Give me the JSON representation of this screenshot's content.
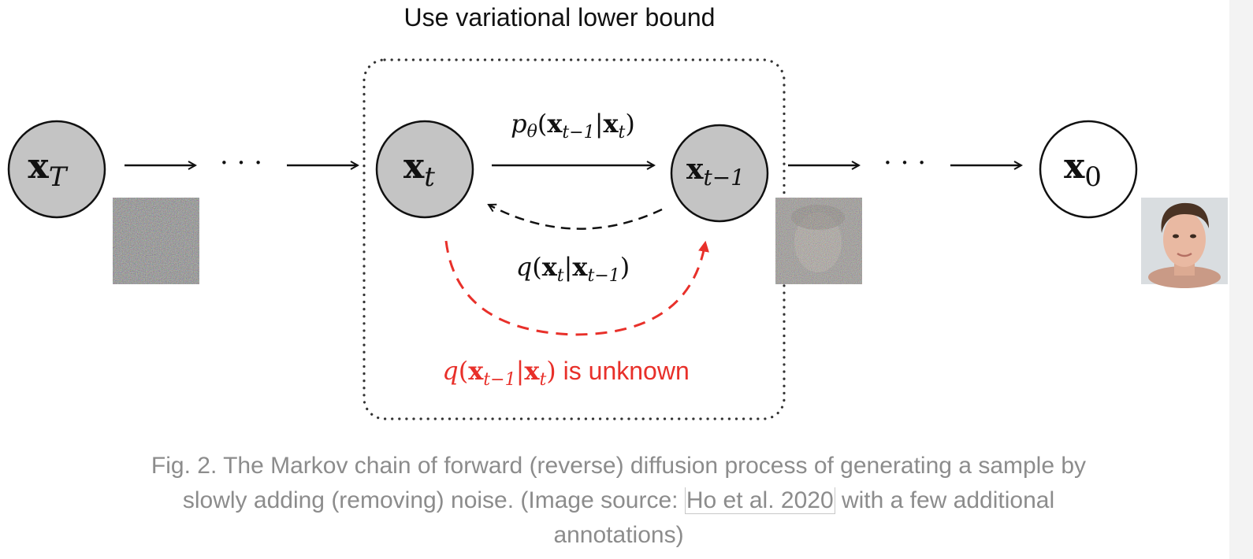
{
  "figure": {
    "top_label": "Use variational lower bound",
    "nodes": [
      {
        "id": "xT",
        "main": "x",
        "sub": "T",
        "filled": true
      },
      {
        "id": "xt",
        "main": "x",
        "sub": "t",
        "filled": true
      },
      {
        "id": "xt1",
        "main": "x",
        "sub": "t−1",
        "filled": true
      },
      {
        "id": "x0",
        "main": "x",
        "sub": "0",
        "filled": false
      }
    ],
    "ellipsis": "· · ·",
    "reverse_label": {
      "fn": "p",
      "param": "θ",
      "arg_main": "x",
      "arg_sub": "t−1",
      "cond_main": "x",
      "cond_sub": "t"
    },
    "forward_label": {
      "fn": "q",
      "arg_main": "x",
      "arg_sub": "t",
      "cond_main": "x",
      "cond_sub": "t−1"
    },
    "unknown_label": {
      "fn": "q",
      "arg_main": "x",
      "arg_sub": "t−1",
      "cond_main": "x",
      "cond_sub": "t",
      "suffix": " is unknown"
    },
    "colors": {
      "node_fill": "#c4c4c4",
      "stroke": "#111111",
      "annotation": "#e8302a",
      "box": "#333333",
      "caption": "#8c8c8c",
      "face_bg": "#d9dde0",
      "skin": "#e9b9a2",
      "hair": "#4a3324"
    },
    "images": [
      {
        "name": "pure-noise-image"
      },
      {
        "name": "noisy-face-image"
      },
      {
        "name": "clean-face-image"
      }
    ]
  },
  "caption": {
    "text_before": "Fig. 2. The Markov chain of forward (reverse) diffusion process of generating a sample by slowly adding (removing) noise. (Image source: ",
    "link_text": "Ho et al. 2020",
    "text_after": " with a few additional annotations)"
  }
}
